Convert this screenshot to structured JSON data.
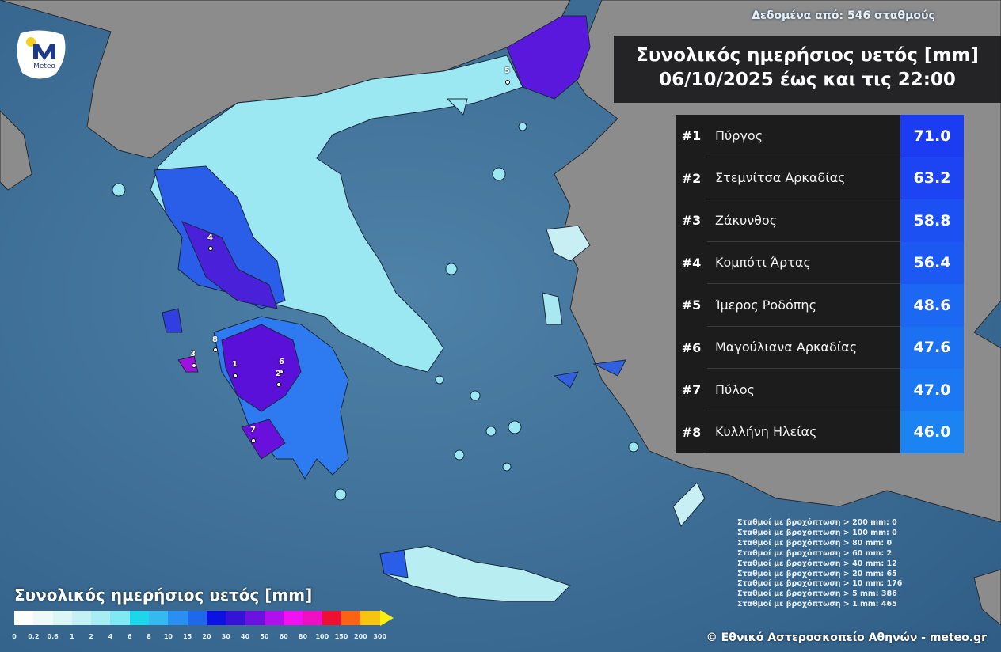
{
  "header": {
    "stations_text": "Δεδομένα από: 546 σταθμούς",
    "title_line1": "Συνολικός ημερήσιος υετός [mm]",
    "title_line2": "06/10/2025 έως και τις 22:00"
  },
  "logo": {
    "text": "Meteo",
    "icon": "meteo-logo"
  },
  "ranking": [
    {
      "rank": "#1",
      "station": "Πύργος",
      "value": "71.0",
      "color": "#1c3cf2"
    },
    {
      "rank": "#2",
      "station": "Στεμνίτσα Αρκαδίας",
      "value": "63.2",
      "color": "#1c44f2"
    },
    {
      "rank": "#3",
      "station": "Ζάκυνθος",
      "value": "58.8",
      "color": "#1c50f2"
    },
    {
      "rank": "#4",
      "station": "Κομπότι Άρτας",
      "value": "56.4",
      "color": "#1c58f2"
    },
    {
      "rank": "#5",
      "station": "Ίμερος Ροδόπης",
      "value": "48.6",
      "color": "#1c68f2"
    },
    {
      "rank": "#6",
      "station": "Μαγούλιανα Αρκαδίας",
      "value": "47.6",
      "color": "#1c70f2"
    },
    {
      "rank": "#7",
      "station": "Πύλος",
      "value": "47.0",
      "color": "#1c78f2"
    },
    {
      "rank": "#8",
      "station": "Κυλλήνη Ηλείας",
      "value": "46.0",
      "color": "#1c84f2"
    }
  ],
  "stats": [
    "Σταθμοί με βροχόπτωση > 200 mm: 0",
    "Σταθμοί με βροχόπτωση > 100 mm: 0",
    "Σταθμοί με βροχόπτωση > 80 mm: 0",
    "Σταθμοί με βροχόπτωση > 60 mm: 2",
    "Σταθμοί με βροχόπτωση > 40 mm: 12",
    "Σταθμοί με βροχόπτωση > 20 mm: 65",
    "Σταθμοί με βροχόπτωση > 10 mm: 176",
    "Σταθμοί με βροχόπτωση > 5 mm: 386",
    "Σταθμοί με βροχόπτωση > 1 mm: 465"
  ],
  "legend": {
    "title": "Συνολικός ημερήσιος υετός [mm]",
    "ticks": [
      "0",
      "0.2",
      "0.6",
      "1",
      "2",
      "4",
      "6",
      "8",
      "10",
      "15",
      "20",
      "30",
      "40",
      "50",
      "60",
      "80",
      "100",
      "150",
      "200",
      "300"
    ],
    "colors": [
      "#ffffff",
      "#eefafa",
      "#dcf6f6",
      "#c4f2f4",
      "#a6eef4",
      "#80e8f2",
      "#1ed6ea",
      "#36b8f0",
      "#2a90f0",
      "#1e68ea",
      "#0c12e2",
      "#3412d6",
      "#6a12e0",
      "#b010ea",
      "#f012f0",
      "#f010c4",
      "#ec1032",
      "#f86414",
      "#f8c412"
    ],
    "arrow_color": "#f8ee10"
  },
  "markers": [
    "1",
    "2",
    "3",
    "4",
    "5",
    "6",
    "7",
    "8"
  ],
  "copyright": "© Εθνικό Αστεροσκοπείο Αθηνών - meteo.gr"
}
